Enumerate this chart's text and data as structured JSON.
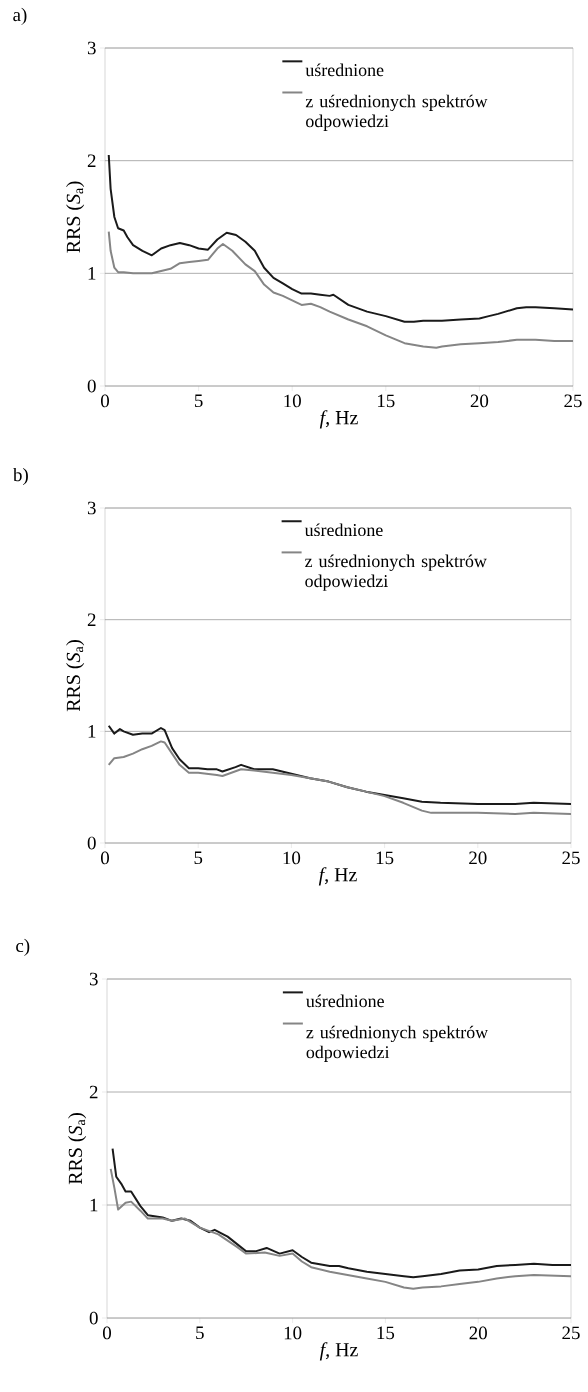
{
  "chart_data": [
    {
      "type": "line",
      "title": "a)",
      "xlabel": "*f*, Hz",
      "ylabel": "RRS (*S*$_{a}$)",
      "xlim": [
        0,
        25
      ],
      "ylim": [
        0,
        3
      ],
      "xticks": [
        0,
        5,
        10,
        15,
        20,
        25
      ],
      "yticks": [
        0,
        1,
        2,
        3
      ],
      "grid": "y",
      "legend": "top right",
      "series": [
        {
          "name": "uśrednione",
          "color": "#1a1a1a",
          "x": [
            0.2,
            0.3,
            0.5,
            0.7,
            1.0,
            1.2,
            1.5,
            2.0,
            2.5,
            3.0,
            3.5,
            4.0,
            4.5,
            5.0,
            5.5,
            6.0,
            6.5,
            7.0,
            7.5,
            8.0,
            8.5,
            9.0,
            9.5,
            10,
            10.5,
            11,
            11.5,
            12,
            12.2,
            13,
            14,
            15,
            16,
            16.5,
            17,
            18,
            19,
            20,
            20.5,
            21,
            22,
            22.5,
            23,
            24,
            25
          ],
          "values": [
            2.05,
            1.75,
            1.5,
            1.4,
            1.38,
            1.32,
            1.25,
            1.2,
            1.16,
            1.22,
            1.25,
            1.27,
            1.25,
            1.22,
            1.21,
            1.3,
            1.36,
            1.34,
            1.28,
            1.2,
            1.05,
            0.96,
            0.91,
            0.86,
            0.82,
            0.82,
            0.81,
            0.8,
            0.81,
            0.72,
            0.66,
            0.62,
            0.57,
            0.57,
            0.58,
            0.58,
            0.59,
            0.6,
            0.62,
            0.64,
            0.69,
            0.7,
            0.7,
            0.69,
            0.68
          ]
        },
        {
          "name": "z uśrednionych spektrów odpowiedzi",
          "color": "#858585",
          "x": [
            0.2,
            0.3,
            0.5,
            0.7,
            1.0,
            1.5,
            2.0,
            2.5,
            3,
            3.5,
            4,
            4.5,
            5,
            5.5,
            6.0,
            6.3,
            6.8,
            7.5,
            8.0,
            8.5,
            9,
            9.5,
            10,
            10.5,
            11,
            11.5,
            12,
            13,
            14,
            15,
            16,
            17,
            17.7,
            18,
            19,
            20,
            21,
            22,
            23,
            24,
            25
          ],
          "values": [
            1.37,
            1.2,
            1.05,
            1.01,
            1.01,
            1.0,
            1.0,
            1.0,
            1.02,
            1.04,
            1.09,
            1.1,
            1.11,
            1.12,
            1.22,
            1.26,
            1.2,
            1.08,
            1.02,
            0.9,
            0.83,
            0.8,
            0.76,
            0.72,
            0.73,
            0.7,
            0.66,
            0.59,
            0.53,
            0.45,
            0.38,
            0.35,
            0.34,
            0.35,
            0.37,
            0.38,
            0.39,
            0.41,
            0.41,
            0.4,
            0.4
          ]
        }
      ]
    },
    {
      "type": "line",
      "title": "b)",
      "xlabel": "*f*, Hz",
      "ylabel": "RRS (*S*$_{a}$)",
      "xlim": [
        0,
        25
      ],
      "ylim": [
        0,
        3
      ],
      "xticks": [
        0,
        5,
        10,
        15,
        20,
        25
      ],
      "yticks": [
        0,
        1,
        2,
        3
      ],
      "grid": "y",
      "legend": "top right",
      "series": [
        {
          "name": "uśrednione",
          "color": "#1a1a1a",
          "x": [
            0.2,
            0.5,
            0.8,
            1.0,
            1.5,
            2,
            2.5,
            3.0,
            3.2,
            3.6,
            4.0,
            4.5,
            5,
            5.5,
            6,
            6.3,
            7,
            7.3,
            8,
            9,
            10,
            11,
            12,
            13,
            14,
            15,
            16,
            17,
            18,
            20,
            22,
            23,
            25
          ],
          "values": [
            1.05,
            0.98,
            1.02,
            1.0,
            0.97,
            0.98,
            0.98,
            1.03,
            1.01,
            0.85,
            0.75,
            0.67,
            0.67,
            0.66,
            0.66,
            0.64,
            0.68,
            0.7,
            0.66,
            0.66,
            0.62,
            0.58,
            0.55,
            0.5,
            0.46,
            0.43,
            0.4,
            0.37,
            0.36,
            0.35,
            0.35,
            0.36,
            0.35
          ]
        },
        {
          "name": "z uśrednionych spektrów odpowiedzi",
          "color": "#858585",
          "x": [
            0.2,
            0.5,
            1.0,
            1.5,
            2,
            2.5,
            3.0,
            3.2,
            3.6,
            4.0,
            4.5,
            5,
            6,
            6.3,
            7.3,
            8,
            9,
            10,
            11,
            12,
            13,
            14,
            15,
            16,
            17,
            17.5,
            18,
            20,
            22,
            23,
            25
          ],
          "values": [
            0.7,
            0.76,
            0.77,
            0.8,
            0.84,
            0.87,
            0.91,
            0.9,
            0.8,
            0.7,
            0.63,
            0.63,
            0.61,
            0.6,
            0.66,
            0.65,
            0.63,
            0.61,
            0.58,
            0.55,
            0.5,
            0.46,
            0.42,
            0.36,
            0.29,
            0.27,
            0.27,
            0.27,
            0.26,
            0.27,
            0.26
          ]
        }
      ]
    },
    {
      "type": "line",
      "title": "c)",
      "xlabel": "*f*, Hz",
      "ylabel": "RRS (*S*$_{a}$)",
      "xlim": [
        0,
        25
      ],
      "ylim": [
        0,
        3
      ],
      "xticks": [
        0,
        5,
        10,
        15,
        20,
        25
      ],
      "yticks": [
        0,
        1,
        2,
        3
      ],
      "grid": "y",
      "legend": "top right",
      "series": [
        {
          "name": "uśrednione",
          "color": "#1a1a1a",
          "x": [
            0.3,
            0.5,
            0.8,
            1.0,
            1.3,
            1.8,
            2.2,
            3,
            3.5,
            4,
            4.5,
            5,
            5.5,
            5.8,
            6.5,
            7.5,
            8,
            8.6,
            9.3,
            10,
            10.5,
            11,
            12,
            12.5,
            13,
            14,
            15,
            16,
            16.5,
            17,
            18,
            19,
            20,
            21,
            22,
            23,
            24,
            25
          ],
          "values": [
            1.5,
            1.25,
            1.18,
            1.12,
            1.12,
            0.99,
            0.91,
            0.89,
            0.86,
            0.88,
            0.86,
            0.8,
            0.76,
            0.78,
            0.72,
            0.59,
            0.59,
            0.62,
            0.57,
            0.6,
            0.54,
            0.49,
            0.46,
            0.46,
            0.44,
            0.41,
            0.39,
            0.37,
            0.36,
            0.37,
            0.39,
            0.42,
            0.43,
            0.46,
            0.47,
            0.48,
            0.47,
            0.47
          ]
        },
        {
          "name": "z uśrednionych spektrów odpowiedzi",
          "color": "#858585",
          "x": [
            0.2,
            0.4,
            0.6,
            1.0,
            1.3,
            1.8,
            2.2,
            3,
            3.5,
            4.2,
            5,
            6,
            7,
            7.5,
            8.5,
            9.3,
            10,
            10.5,
            11,
            12,
            13,
            14,
            15,
            16,
            16.5,
            17,
            18,
            19,
            20,
            21,
            22,
            23,
            25
          ],
          "values": [
            1.32,
            1.15,
            0.96,
            1.02,
            1.03,
            0.95,
            0.88,
            0.88,
            0.86,
            0.88,
            0.8,
            0.74,
            0.63,
            0.57,
            0.58,
            0.55,
            0.57,
            0.5,
            0.45,
            0.41,
            0.38,
            0.35,
            0.32,
            0.27,
            0.26,
            0.27,
            0.28,
            0.3,
            0.32,
            0.35,
            0.37,
            0.38,
            0.37
          ]
        }
      ]
    }
  ]
}
